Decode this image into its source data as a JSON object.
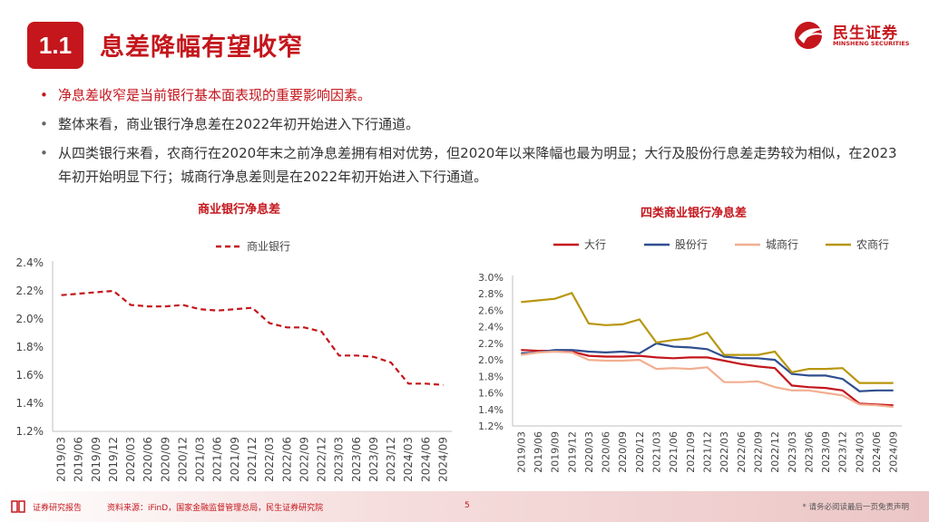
{
  "header": {
    "section_number": "1.1",
    "title": "息差降幅有望收窄",
    "logo_cn": "民生证券",
    "logo_en": "MINSHENG SECURITIES"
  },
  "bullets": [
    "净息差收窄是当前银行基本面表现的重要影响因素。",
    "整体来看，商业银行净息差在2022年初开始进入下行通道。",
    "从四类银行来看，农商行在2020年末之前净息差拥有相对优势，但2020年以来降幅也最为明显；大行及股份行息差走势较为相似，在2023年初开始明显下行；城商行净息差则是在2022年初开始进入下行通道。"
  ],
  "chart_data": [
    {
      "type": "line",
      "title": "商业银行净息差",
      "x": [
        "2019/03",
        "2019/06",
        "2019/09",
        "2019/12",
        "2020/03",
        "2020/06",
        "2020/09",
        "2020/12",
        "2021/03",
        "2021/06",
        "2021/09",
        "2021/12",
        "2022/03",
        "2022/06",
        "2022/09",
        "2022/12",
        "2023/03",
        "2023/06",
        "2023/09",
        "2023/12",
        "2024/03",
        "2024/06",
        "2024/09"
      ],
      "series": [
        {
          "name": "商业银行",
          "color": "#c4161c",
          "dashed": true,
          "values": [
            2.17,
            2.18,
            2.19,
            2.2,
            2.1,
            2.09,
            2.09,
            2.1,
            2.07,
            2.06,
            2.07,
            2.08,
            1.97,
            1.94,
            1.94,
            1.91,
            1.74,
            1.74,
            1.73,
            1.69,
            1.54,
            1.54,
            1.53
          ]
        }
      ],
      "yticks": [
        "2.4%",
        "2.2%",
        "2.0%",
        "1.8%",
        "1.6%",
        "1.4%",
        "1.2%"
      ],
      "ylim": [
        1.2,
        2.4
      ],
      "legend": "top"
    },
    {
      "type": "line",
      "title": "四类商业银行净息差",
      "x": [
        "2019/03",
        "2019/06",
        "2019/09",
        "2019/12",
        "2020/03",
        "2020/06",
        "2020/09",
        "2020/12",
        "2021/03",
        "2021/06",
        "2021/09",
        "2021/12",
        "2022/03",
        "2022/06",
        "2022/09",
        "2022/12",
        "2023/03",
        "2023/06",
        "2023/09",
        "2023/12",
        "2024/03",
        "2024/06",
        "2024/09"
      ],
      "series": [
        {
          "name": "大行",
          "color": "#c4161c",
          "values": [
            2.12,
            2.11,
            2.11,
            2.1,
            2.05,
            2.04,
            2.04,
            2.05,
            2.03,
            2.02,
            2.03,
            2.03,
            1.99,
            1.95,
            1.92,
            1.9,
            1.69,
            1.67,
            1.66,
            1.63,
            1.47,
            1.46,
            1.45
          ]
        },
        {
          "name": "股份行",
          "color": "#2f4f8f",
          "values": [
            2.08,
            2.09,
            2.12,
            2.12,
            2.1,
            2.09,
            2.1,
            2.08,
            2.2,
            2.16,
            2.15,
            2.13,
            2.04,
            2.02,
            2.02,
            2.0,
            1.83,
            1.81,
            1.81,
            1.77,
            1.62,
            1.63,
            1.63
          ]
        },
        {
          "name": "城商行",
          "color": "#f2ae90",
          "values": [
            2.06,
            2.09,
            2.1,
            2.09,
            2.0,
            1.99,
            1.99,
            2.0,
            1.89,
            1.9,
            1.89,
            1.91,
            1.73,
            1.73,
            1.74,
            1.67,
            1.63,
            1.63,
            1.6,
            1.57,
            1.46,
            1.45,
            1.43
          ]
        },
        {
          "name": "农商行",
          "color": "#b8960f",
          "values": [
            2.7,
            2.72,
            2.74,
            2.81,
            2.44,
            2.42,
            2.43,
            2.49,
            2.21,
            2.24,
            2.26,
            2.33,
            2.06,
            2.06,
            2.06,
            2.1,
            1.85,
            1.89,
            1.89,
            1.9,
            1.72,
            1.72,
            1.72
          ]
        }
      ],
      "yticks": [
        "3.0%",
        "2.8%",
        "2.6%",
        "2.4%",
        "2.2%",
        "2.0%",
        "1.8%",
        "1.6%",
        "1.4%",
        "1.2%"
      ],
      "ylim": [
        1.2,
        3.0
      ],
      "legend": "top"
    }
  ],
  "footer": {
    "label": "证券研究报告",
    "source": "资料来源：iFinD，国家金融监督管理总局，民生证券研究院",
    "page": "5",
    "disclaimer": "* 请务必阅读最后一页免责声明"
  },
  "colors": {
    "brand_red": "#c4161c"
  }
}
